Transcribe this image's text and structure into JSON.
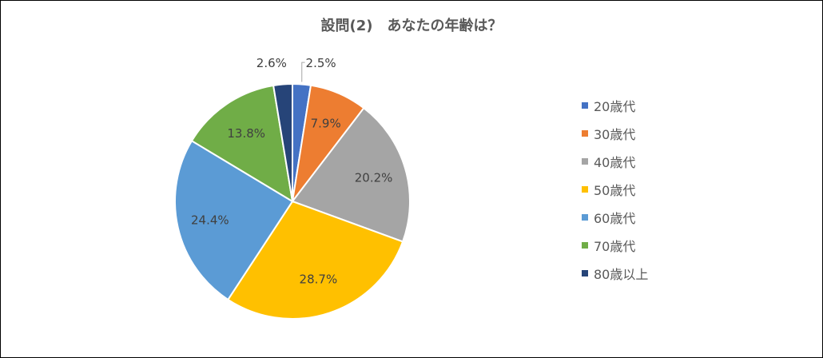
{
  "chart_data": {
    "type": "pie",
    "title": "設問(2)　あなたの年齢は？",
    "categories": [
      "20歳代",
      "30歳代",
      "40歳代",
      "50歳代",
      "60歳代",
      "70歳代",
      "80歳以上"
    ],
    "values": [
      2.5,
      7.9,
      20.2,
      28.7,
      24.4,
      13.8,
      2.6
    ],
    "data_labels": [
      "2.5%",
      "7.9%",
      "20.2%",
      "28.7%",
      "24.4%",
      "13.8%",
      "2.6%"
    ],
    "colors": [
      "#4472C4",
      "#ED7D31",
      "#A5A5A5",
      "#FFC000",
      "#5B9BD5",
      "#70AD47",
      "#264478"
    ],
    "start_angle": "12 o'clock",
    "direction": "clockwise",
    "legend_position": "right"
  }
}
